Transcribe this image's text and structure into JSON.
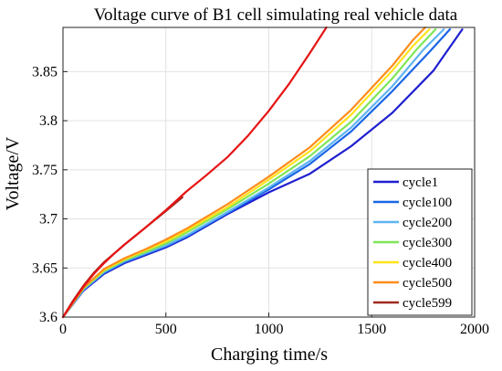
{
  "chart_data": {
    "type": "line",
    "title": "Voltage curve of B1 cell simulating real vehicle data",
    "xlabel": "Charging time/s",
    "ylabel": "Voltage/V",
    "xlim": [
      0,
      2000
    ],
    "ylim": [
      3.6,
      3.895
    ],
    "xticks": [
      0,
      500,
      1000,
      1500,
      2000
    ],
    "xtick_labels": [
      "0",
      "500",
      "1000",
      "1500",
      "2000"
    ],
    "yticks": [
      3.6,
      3.65,
      3.7,
      3.75,
      3.8,
      3.85
    ],
    "ytick_labels": [
      "3.6",
      "3.65",
      "3.7",
      "3.75",
      "3.8",
      "3.85"
    ],
    "grid": true,
    "legend_position": "bottom-right",
    "series": [
      {
        "name": "cycle1",
        "color": "#1f1fd0",
        "x": [
          0,
          100,
          200,
          300,
          400,
          500,
          600,
          800,
          1000,
          1200,
          1400,
          1600,
          1800,
          1940
        ],
        "y": [
          3.6,
          3.627,
          3.644,
          3.655,
          3.663,
          3.671,
          3.681,
          3.705,
          3.727,
          3.746,
          3.774,
          3.808,
          3.851,
          3.893
        ]
      },
      {
        "name": "cycle100",
        "color": "#1a66e6",
        "x": [
          0,
          100,
          200,
          300,
          400,
          500,
          600,
          800,
          1000,
          1200,
          1400,
          1600,
          1780,
          1880
        ],
        "y": [
          3.6,
          3.628,
          3.645,
          3.656,
          3.664,
          3.672,
          3.682,
          3.706,
          3.73,
          3.756,
          3.789,
          3.83,
          3.87,
          3.893
        ]
      },
      {
        "name": "cycle200",
        "color": "#5fb4f0",
        "x": [
          0,
          100,
          200,
          300,
          400,
          500,
          600,
          800,
          1000,
          1200,
          1400,
          1600,
          1750,
          1850
        ],
        "y": [
          3.6,
          3.628,
          3.646,
          3.657,
          3.665,
          3.673,
          3.683,
          3.707,
          3.732,
          3.759,
          3.793,
          3.835,
          3.872,
          3.893
        ]
      },
      {
        "name": "cycle300",
        "color": "#7fe657",
        "x": [
          0,
          100,
          200,
          300,
          400,
          500,
          600,
          800,
          1000,
          1200,
          1400,
          1600,
          1720,
          1810
        ],
        "y": [
          3.6,
          3.629,
          3.647,
          3.658,
          3.666,
          3.675,
          3.686,
          3.71,
          3.736,
          3.764,
          3.799,
          3.843,
          3.873,
          3.893
        ]
      },
      {
        "name": "cycle400",
        "color": "#ffe31a",
        "x": [
          0,
          100,
          200,
          300,
          400,
          500,
          600,
          800,
          1000,
          1200,
          1400,
          1600,
          1700,
          1780
        ],
        "y": [
          3.6,
          3.63,
          3.648,
          3.659,
          3.668,
          3.677,
          3.688,
          3.712,
          3.74,
          3.769,
          3.806,
          3.851,
          3.876,
          3.893
        ]
      },
      {
        "name": "cycle500",
        "color": "#ff8c1a",
        "x": [
          0,
          100,
          200,
          300,
          400,
          500,
          600,
          800,
          1000,
          1200,
          1400,
          1600,
          1700,
          1760
        ],
        "y": [
          3.6,
          3.63,
          3.649,
          3.66,
          3.669,
          3.679,
          3.69,
          3.715,
          3.743,
          3.773,
          3.811,
          3.856,
          3.882,
          3.895
        ]
      },
      {
        "name": "cycle599",
        "color": "#a0281e",
        "x": [
          0,
          50,
          100,
          150,
          200,
          250,
          300,
          400,
          500,
          580
        ],
        "y": [
          3.6,
          3.617,
          3.632,
          3.645,
          3.656,
          3.665,
          3.674,
          3.691,
          3.708,
          3.722
        ]
      },
      {
        "name": "",
        "color": "#e61414",
        "x": [
          0,
          50,
          100,
          150,
          200,
          250,
          300,
          400,
          500,
          600,
          700,
          800,
          900,
          1000,
          1100,
          1200,
          1280
        ],
        "y": [
          3.6,
          3.616,
          3.631,
          3.644,
          3.655,
          3.665,
          3.674,
          3.691,
          3.709,
          3.728,
          3.745,
          3.763,
          3.785,
          3.81,
          3.838,
          3.869,
          3.895
        ]
      }
    ]
  }
}
